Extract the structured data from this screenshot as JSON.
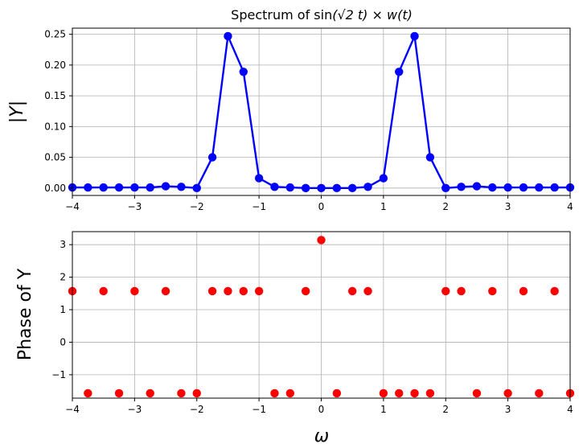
{
  "chart_data": [
    {
      "type": "line",
      "title_prefix": "Spectrum of sin",
      "title_math": "(√2 t) × w(t)",
      "ylabel": "|Y|",
      "xlim": [
        -4,
        4
      ],
      "ylim": [
        -0.012,
        0.26
      ],
      "grid": true,
      "xticks": [
        -4,
        -3,
        -2,
        -1,
        0,
        1,
        2,
        3,
        4
      ],
      "xtick_labels": [
        "−4",
        "−3",
        "−2",
        "−1",
        "0",
        "1",
        "2",
        "3",
        "4"
      ],
      "yticks": [
        0.0,
        0.05,
        0.1,
        0.15,
        0.2,
        0.25
      ],
      "ytick_labels": [
        "0.00",
        "0.05",
        "0.10",
        "0.15",
        "0.20",
        "0.25"
      ],
      "series": [
        {
          "color": "#0000ff",
          "x": [
            -4,
            -3.75,
            -3.5,
            -3.25,
            -3,
            -2.75,
            -2.5,
            -2.25,
            -2,
            -1.75,
            -1.5,
            -1.25,
            -1,
            -0.75,
            -0.5,
            -0.25,
            0,
            0.25,
            0.5,
            0.75,
            1,
            1.25,
            1.5,
            1.75,
            2,
            2.25,
            2.5,
            2.75,
            3,
            3.25,
            3.5,
            3.75,
            4
          ],
          "y": [
            0.001,
            0.001,
            0.001,
            0.001,
            0.001,
            0.001,
            0.003,
            0.002,
            0.0,
            0.05,
            0.247,
            0.189,
            0.016,
            0.002,
            0.001,
            0.0,
            0.0,
            0.0,
            0.0,
            0.002,
            0.016,
            0.189,
            0.247,
            0.05,
            0.0,
            0.002,
            0.003,
            0.001,
            0.001,
            0.001,
            0.001,
            0.001,
            0.001
          ]
        }
      ]
    },
    {
      "type": "scatter",
      "ylabel": "Phase of Y",
      "xlabel": "ω",
      "xlim": [
        -4,
        4
      ],
      "ylim": [
        -1.72,
        3.4
      ],
      "grid": true,
      "xticks": [
        -4,
        -3,
        -2,
        -1,
        0,
        1,
        2,
        3,
        4
      ],
      "xtick_labels": [
        "−4",
        "−3",
        "−2",
        "−1",
        "0",
        "1",
        "2",
        "3",
        "4"
      ],
      "yticks": [
        -1,
        0,
        1,
        2,
        3
      ],
      "ytick_labels": [
        "−1",
        "0",
        "1",
        "2",
        "3"
      ],
      "series": [
        {
          "color": "#ff0000",
          "x": [
            -4,
            -3.75,
            -3.5,
            -3.25,
            -3,
            -2.75,
            -2.5,
            -2.25,
            -2,
            -1.75,
            -1.5,
            -1.25,
            -1,
            -0.75,
            -0.5,
            -0.25,
            0,
            0.25,
            0.5,
            0.75,
            1,
            1.25,
            1.5,
            1.75,
            2,
            2.25,
            2.5,
            2.75,
            3,
            3.25,
            3.5,
            3.75,
            4
          ],
          "y": [
            1.571,
            -1.571,
            1.571,
            -1.571,
            1.571,
            -1.571,
            1.571,
            -1.571,
            -1.571,
            1.571,
            1.571,
            1.571,
            1.571,
            -1.571,
            -1.571,
            1.571,
            3.1416,
            -1.571,
            1.571,
            1.571,
            -1.571,
            -1.571,
            -1.571,
            -1.571,
            1.571,
            1.571,
            -1.571,
            1.571,
            -1.571,
            1.571,
            -1.571,
            1.571,
            -1.571
          ]
        }
      ]
    }
  ]
}
